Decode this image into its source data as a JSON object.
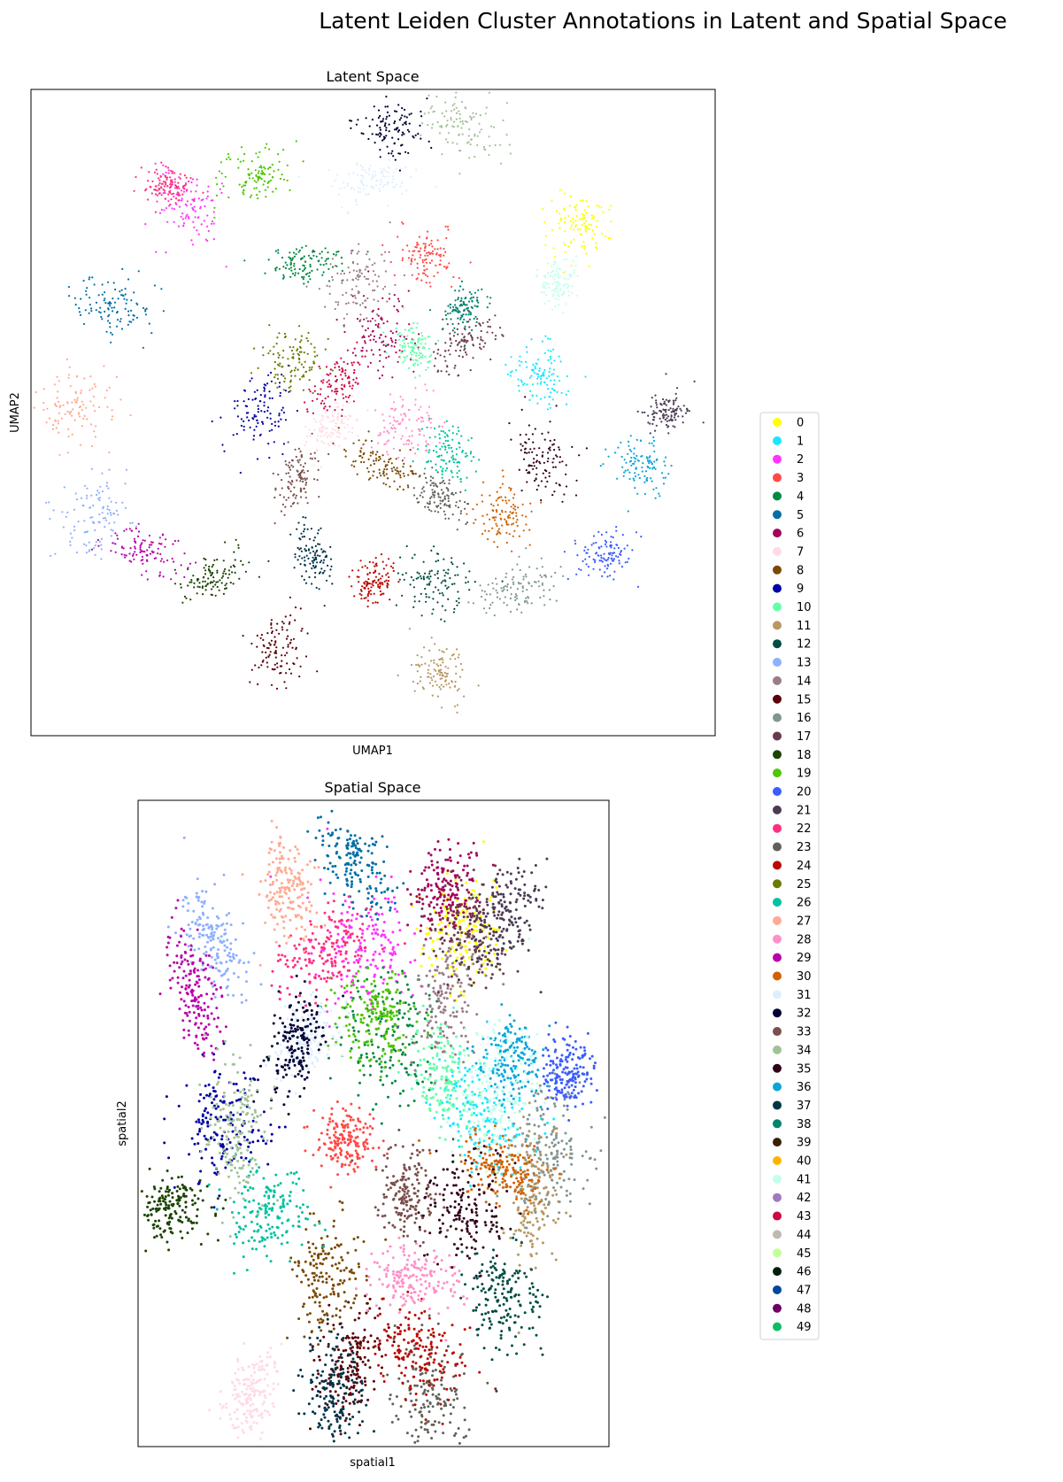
{
  "chart_data": [
    {
      "type": "scatter",
      "figure_title": "Latent Leiden Cluster Annotations in Latent and Spatial Space",
      "title": "Latent Space",
      "xlabel": "UMAP1",
      "ylabel": "UMAP2",
      "ticks": "none",
      "grid": false,
      "cluster_centers": [
        {
          "cluster": "0",
          "x": 0.8,
          "y": 0.79
        },
        {
          "cluster": "1",
          "x": 0.74,
          "y": 0.56
        },
        {
          "cluster": "2",
          "x": 0.23,
          "y": 0.82
        },
        {
          "cluster": "3",
          "x": 0.58,
          "y": 0.74
        },
        {
          "cluster": "4",
          "x": 0.4,
          "y": 0.73
        },
        {
          "cluster": "5",
          "x": 0.12,
          "y": 0.66
        },
        {
          "cluster": "6",
          "x": 0.51,
          "y": 0.62
        },
        {
          "cluster": "7",
          "x": 0.44,
          "y": 0.48
        },
        {
          "cluster": "8",
          "x": 0.51,
          "y": 0.42
        },
        {
          "cluster": "9",
          "x": 0.33,
          "y": 0.5
        },
        {
          "cluster": "10",
          "x": 0.56,
          "y": 0.6
        },
        {
          "cluster": "11",
          "x": 0.6,
          "y": 0.1
        },
        {
          "cluster": "12",
          "x": 0.59,
          "y": 0.24
        },
        {
          "cluster": "13",
          "x": 0.09,
          "y": 0.34
        },
        {
          "cluster": "14",
          "x": 0.48,
          "y": 0.71
        },
        {
          "cluster": "15",
          "x": 0.36,
          "y": 0.14
        },
        {
          "cluster": "16",
          "x": 0.71,
          "y": 0.23
        },
        {
          "cluster": "17",
          "x": 0.64,
          "y": 0.61
        },
        {
          "cluster": "18",
          "x": 0.27,
          "y": 0.25
        },
        {
          "cluster": "19",
          "x": 0.33,
          "y": 0.87
        },
        {
          "cluster": "20",
          "x": 0.84,
          "y": 0.28
        },
        {
          "cluster": "21",
          "x": 0.93,
          "y": 0.5
        },
        {
          "cluster": "22",
          "x": 0.2,
          "y": 0.85
        },
        {
          "cluster": "23",
          "x": 0.6,
          "y": 0.37
        },
        {
          "cluster": "24",
          "x": 0.5,
          "y": 0.24
        },
        {
          "cluster": "25",
          "x": 0.38,
          "y": 0.58
        },
        {
          "cluster": "26",
          "x": 0.61,
          "y": 0.44
        },
        {
          "cluster": "27",
          "x": 0.06,
          "y": 0.51
        },
        {
          "cluster": "28",
          "x": 0.55,
          "y": 0.48
        },
        {
          "cluster": "29",
          "x": 0.17,
          "y": 0.28
        },
        {
          "cluster": "30",
          "x": 0.69,
          "y": 0.34
        },
        {
          "cluster": "31",
          "x": 0.5,
          "y": 0.86
        },
        {
          "cluster": "32",
          "x": 0.53,
          "y": 0.94
        },
        {
          "cluster": "33",
          "x": 0.39,
          "y": 0.4
        },
        {
          "cluster": "34",
          "x": 0.63,
          "y": 0.94
        },
        {
          "cluster": "35",
          "x": 0.75,
          "y": 0.42
        },
        {
          "cluster": "36",
          "x": 0.89,
          "y": 0.42
        },
        {
          "cluster": "37",
          "x": 0.41,
          "y": 0.28
        },
        {
          "cluster": "38",
          "x": 0.63,
          "y": 0.66
        },
        {
          "cluster": "41",
          "x": 0.77,
          "y": 0.7
        },
        {
          "cluster": "43",
          "x": 0.45,
          "y": 0.55
        }
      ]
    },
    {
      "type": "scatter",
      "title": "Spatial Space",
      "xlabel": "spatial1",
      "ylabel": "spatial2",
      "ticks": "none",
      "grid": false,
      "cluster_centers": [
        {
          "cluster": "0",
          "x": 0.68,
          "y": 0.79
        },
        {
          "cluster": "1",
          "x": 0.73,
          "y": 0.51
        },
        {
          "cluster": "2",
          "x": 0.49,
          "y": 0.77
        },
        {
          "cluster": "3",
          "x": 0.44,
          "y": 0.47
        },
        {
          "cluster": "4",
          "x": 0.53,
          "y": 0.63
        },
        {
          "cluster": "5",
          "x": 0.46,
          "y": 0.9
        },
        {
          "cluster": "6",
          "x": 0.65,
          "y": 0.86
        },
        {
          "cluster": "7",
          "x": 0.24,
          "y": 0.08
        },
        {
          "cluster": "8",
          "x": 0.4,
          "y": 0.26
        },
        {
          "cluster": "9",
          "x": 0.18,
          "y": 0.5
        },
        {
          "cluster": "10",
          "x": 0.65,
          "y": 0.57
        },
        {
          "cluster": "11",
          "x": 0.84,
          "y": 0.39
        },
        {
          "cluster": "12",
          "x": 0.78,
          "y": 0.23
        },
        {
          "cluster": "13",
          "x": 0.16,
          "y": 0.79
        },
        {
          "cluster": "14",
          "x": 0.66,
          "y": 0.7
        },
        {
          "cluster": "15",
          "x": 0.45,
          "y": 0.13
        },
        {
          "cluster": "16",
          "x": 0.87,
          "y": 0.46
        },
        {
          "cluster": "17",
          "x": 0.7,
          "y": 0.8
        },
        {
          "cluster": "18",
          "x": 0.07,
          "y": 0.37
        },
        {
          "cluster": "19",
          "x": 0.51,
          "y": 0.66
        },
        {
          "cluster": "20",
          "x": 0.91,
          "y": 0.58
        },
        {
          "cluster": "21",
          "x": 0.78,
          "y": 0.82
        },
        {
          "cluster": "22",
          "x": 0.4,
          "y": 0.76
        },
        {
          "cluster": "23",
          "x": 0.62,
          "y": 0.07
        },
        {
          "cluster": "24",
          "x": 0.59,
          "y": 0.15
        },
        {
          "cluster": "26",
          "x": 0.28,
          "y": 0.36
        },
        {
          "cluster": "27",
          "x": 0.32,
          "y": 0.86
        },
        {
          "cluster": "28",
          "x": 0.58,
          "y": 0.26
        },
        {
          "cluster": "29",
          "x": 0.12,
          "y": 0.71
        },
        {
          "cluster": "30",
          "x": 0.77,
          "y": 0.43
        },
        {
          "cluster": "31",
          "x": 0.36,
          "y": 0.64
        },
        {
          "cluster": "32",
          "x": 0.33,
          "y": 0.62
        },
        {
          "cluster": "33",
          "x": 0.57,
          "y": 0.39
        },
        {
          "cluster": "34",
          "x": 0.21,
          "y": 0.48
        },
        {
          "cluster": "35",
          "x": 0.7,
          "y": 0.37
        },
        {
          "cluster": "36",
          "x": 0.79,
          "y": 0.6
        },
        {
          "cluster": "37",
          "x": 0.42,
          "y": 0.09
        },
        {
          "cluster": "41",
          "x": 0.76,
          "y": 0.55
        }
      ]
    }
  ],
  "legend": {
    "placement": "right",
    "entries": [
      {
        "label": "0",
        "color": "#ffff00"
      },
      {
        "label": "1",
        "color": "#1ce6ff"
      },
      {
        "label": "2",
        "color": "#ff34ff"
      },
      {
        "label": "3",
        "color": "#ff4a46"
      },
      {
        "label": "4",
        "color": "#008941"
      },
      {
        "label": "5",
        "color": "#006fa6"
      },
      {
        "label": "6",
        "color": "#a30059"
      },
      {
        "label": "7",
        "color": "#ffdbe5"
      },
      {
        "label": "8",
        "color": "#7a4900"
      },
      {
        "label": "9",
        "color": "#0000a6"
      },
      {
        "label": "10",
        "color": "#63ffac"
      },
      {
        "label": "11",
        "color": "#b79762"
      },
      {
        "label": "12",
        "color": "#004d43"
      },
      {
        "label": "13",
        "color": "#8fb0ff"
      },
      {
        "label": "14",
        "color": "#997d87"
      },
      {
        "label": "15",
        "color": "#5a0007"
      },
      {
        "label": "16",
        "color": "#809693"
      },
      {
        "label": "17",
        "color": "#6a3a4c"
      },
      {
        "label": "18",
        "color": "#1b4400"
      },
      {
        "label": "19",
        "color": "#4fc601"
      },
      {
        "label": "20",
        "color": "#3b5dff"
      },
      {
        "label": "21",
        "color": "#4a3b53"
      },
      {
        "label": "22",
        "color": "#ff2f80"
      },
      {
        "label": "23",
        "color": "#61615a"
      },
      {
        "label": "24",
        "color": "#ba0900"
      },
      {
        "label": "25",
        "color": "#6b7900"
      },
      {
        "label": "26",
        "color": "#00c2a0"
      },
      {
        "label": "27",
        "color": "#ffaa92"
      },
      {
        "label": "28",
        "color": "#ff90c9"
      },
      {
        "label": "29",
        "color": "#b903aa"
      },
      {
        "label": "30",
        "color": "#d16100"
      },
      {
        "label": "31",
        "color": "#ddefff"
      },
      {
        "label": "32",
        "color": "#000035"
      },
      {
        "label": "33",
        "color": "#7b4f4b"
      },
      {
        "label": "34",
        "color": "#a1c299"
      },
      {
        "label": "35",
        "color": "#300018"
      },
      {
        "label": "36",
        "color": "#0aa6d8"
      },
      {
        "label": "37",
        "color": "#013349"
      },
      {
        "label": "38",
        "color": "#00846f"
      },
      {
        "label": "39",
        "color": "#372101"
      },
      {
        "label": "40",
        "color": "#ffb500"
      },
      {
        "label": "41",
        "color": "#c2ffed"
      },
      {
        "label": "42",
        "color": "#a079bf"
      },
      {
        "label": "43",
        "color": "#cc0744"
      },
      {
        "label": "44",
        "color": "#c0b9b2"
      },
      {
        "label": "45",
        "color": "#c2ff99"
      },
      {
        "label": "46",
        "color": "#001e09"
      },
      {
        "label": "47",
        "color": "#00489c"
      },
      {
        "label": "48",
        "color": "#6f0062"
      },
      {
        "label": "49",
        "color": "#0cbd66"
      }
    ]
  }
}
